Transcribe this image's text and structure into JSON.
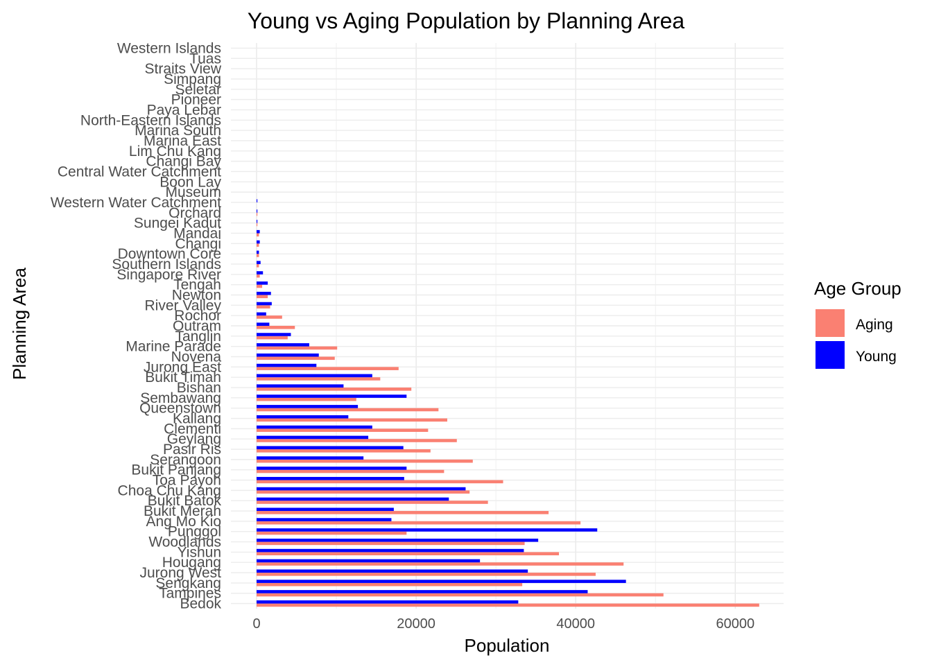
{
  "chart_data": {
    "type": "bar",
    "orientation": "horizontal",
    "title": "Young vs Aging Population by Planning Area",
    "xlabel": "Population",
    "ylabel": "Planning Area",
    "xlim": [
      -3000,
      66000
    ],
    "xticks": [
      0,
      20000,
      40000,
      60000
    ],
    "xtick_labels": [
      "0",
      "20000",
      "40000",
      "60000"
    ],
    "grid": true,
    "legend": {
      "title": "Age Group",
      "position": "right",
      "entries": [
        {
          "name": "Aging",
          "color": "#FA8072"
        },
        {
          "name": "Young",
          "color": "#0000FF"
        }
      ]
    },
    "categories": [
      "Bedok",
      "Tampines",
      "Sengkang",
      "Jurong West",
      "Hougang",
      "Yishun",
      "Woodlands",
      "Punggol",
      "Ang Mo Kio",
      "Bukit Merah",
      "Bukit Batok",
      "Choa Chu Kang",
      "Toa Payoh",
      "Bukit Panjang",
      "Serangoon",
      "Pasir Ris",
      "Geylang",
      "Clementi",
      "Kallang",
      "Queenstown",
      "Sembawang",
      "Bishan",
      "Bukit Timah",
      "Jurong East",
      "Novena",
      "Marine Parade",
      "Tanglin",
      "Outram",
      "Rochor",
      "River Valley",
      "Newton",
      "Tengah",
      "Singapore River",
      "Southern Islands",
      "Downtown Core",
      "Changi",
      "Mandai",
      "Sungei Kadut",
      "Orchard",
      "Western Water Catchment",
      "Museum",
      "Boon Lay",
      "Central Water Catchment",
      "Changi Bay",
      "Lim Chu Kang",
      "Marina East",
      "Marina South",
      "North-Eastern Islands",
      "Paya Lebar",
      "Pioneer",
      "Seletar",
      "Simpang",
      "Straits View",
      "Tuas",
      "Western Islands"
    ],
    "series": [
      {
        "name": "Aging",
        "color": "#FA8072",
        "values": [
          63000,
          51000,
          33300,
          42500,
          46000,
          37900,
          33600,
          18800,
          40600,
          36600,
          29000,
          26700,
          30900,
          23500,
          27100,
          21800,
          25100,
          21500,
          23900,
          22800,
          12500,
          19400,
          15500,
          17800,
          9800,
          10100,
          3900,
          4800,
          3200,
          1700,
          1400,
          700,
          400,
          300,
          300,
          300,
          300,
          100,
          100,
          0,
          0,
          0,
          0,
          0,
          0,
          0,
          0,
          0,
          0,
          0,
          0,
          0,
          0,
          0,
          0
        ]
      },
      {
        "name": "Young",
        "color": "#0000FF",
        "values": [
          32800,
          41500,
          46300,
          34000,
          28000,
          33500,
          35300,
          42700,
          16900,
          17200,
          24100,
          26200,
          18500,
          18800,
          13400,
          18400,
          14000,
          14500,
          11500,
          12700,
          18800,
          10900,
          14500,
          7500,
          7800,
          6600,
          4300,
          1600,
          1200,
          1900,
          1800,
          1400,
          800,
          500,
          300,
          400,
          400,
          100,
          100,
          100,
          0,
          0,
          0,
          0,
          0,
          0,
          0,
          0,
          0,
          0,
          0,
          0,
          0,
          0,
          0
        ]
      }
    ]
  }
}
